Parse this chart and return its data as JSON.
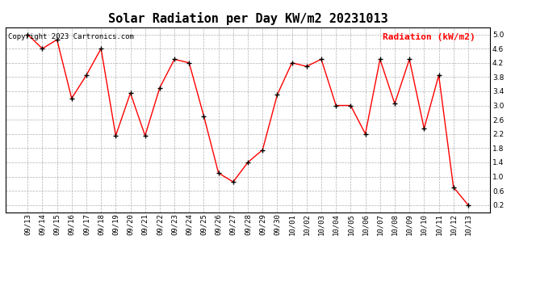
{
  "title": "Solar Radiation per Day KW/m2 20231013",
  "copyright_text": "Copyright 2023 Cartronics.com",
  "legend_text": "Radiation (kW/m2)",
  "dates": [
    "09/13",
    "09/14",
    "09/15",
    "09/16",
    "09/17",
    "09/18",
    "09/19",
    "09/20",
    "09/21",
    "09/22",
    "09/23",
    "09/24",
    "09/25",
    "09/26",
    "09/27",
    "09/28",
    "09/29",
    "09/30",
    "10/01",
    "10/02",
    "10/03",
    "10/04",
    "10/05",
    "10/06",
    "10/07",
    "10/08",
    "10/09",
    "10/10",
    "10/11",
    "10/12",
    "10/13"
  ],
  "values": [
    5.0,
    4.6,
    4.85,
    3.2,
    3.85,
    4.6,
    2.15,
    3.35,
    2.15,
    3.5,
    4.3,
    4.2,
    2.7,
    1.1,
    0.85,
    1.4,
    1.75,
    3.3,
    4.2,
    4.1,
    4.3,
    3.0,
    3.0,
    2.2,
    4.3,
    3.05,
    4.3,
    2.35,
    3.85,
    0.7,
    0.2
  ],
  "line_color": "red",
  "marker_color": "black",
  "grid_color": "#b0b0b0",
  "background_color": "white",
  "title_fontsize": 11,
  "ylim": [
    0.0,
    5.2
  ],
  "yticks": [
    0.2,
    0.6,
    1.0,
    1.4,
    1.8,
    2.2,
    2.6,
    3.0,
    3.4,
    3.8,
    4.2,
    4.6,
    5.0
  ],
  "copyright_color": "black",
  "legend_color": "red",
  "copyright_fontsize": 6.5,
  "legend_fontsize": 8,
  "tick_fontsize": 6.5
}
